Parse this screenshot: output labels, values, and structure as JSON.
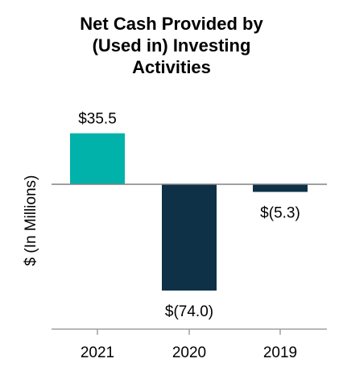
{
  "chart_data": {
    "type": "bar",
    "title_lines": [
      "Net Cash Provided by",
      "(Used in) Investing",
      "Activities"
    ],
    "ylabel": "$ (In Millions)",
    "xlabel": "",
    "categories": [
      "2021",
      "2020",
      "2019"
    ],
    "values": [
      35.5,
      -74.0,
      -5.3
    ],
    "data_labels": [
      "$35.5",
      "$(74.0)",
      "$(5.3)"
    ],
    "bar_colors": [
      "#00b2a9",
      "#0e3147",
      "#0e3147"
    ],
    "ylim": [
      -100,
      45
    ],
    "grid": false,
    "legend": "none"
  }
}
